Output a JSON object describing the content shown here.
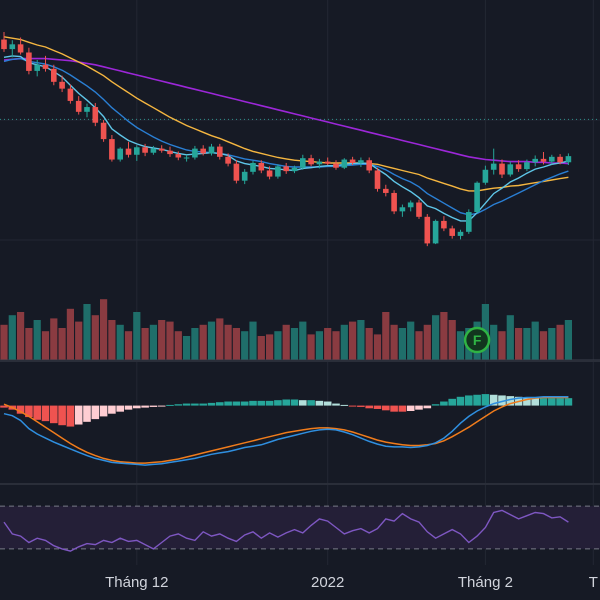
{
  "chart_data": {
    "type": "candlestick",
    "grid": true,
    "colors": {
      "background": "#161a25",
      "grid": "#232733",
      "up": "#26a69a",
      "down": "#ef5350",
      "volume_up": "#1f6e6a",
      "volume_down": "#8a3b41",
      "ma_fast": "#5fc6e8",
      "ma_mid": "#2a7fd4",
      "ma_slow": "#f5b640",
      "ma_long": "#9c27d8",
      "macd_line": "#2f8fe0",
      "signal_line": "#f07c1c",
      "hist_pos_strong": "#26a69a",
      "hist_pos_weak": "#b2dfdb",
      "hist_neg_strong": "#ef5350",
      "hist_neg_weak": "#ffcdd2",
      "rsi_line": "#7e57c2",
      "rsi_band": "#241f37",
      "badge": "#2fb344"
    },
    "price_candles": [
      {
        "o": 48.2,
        "h": 49.3,
        "l": 46.4,
        "c": 46.8
      },
      {
        "o": 46.8,
        "h": 48.1,
        "l": 45.6,
        "c": 47.5
      },
      {
        "o": 47.5,
        "h": 48.5,
        "l": 46.0,
        "c": 46.3
      },
      {
        "o": 46.3,
        "h": 47.0,
        "l": 43.1,
        "c": 43.6
      },
      {
        "o": 43.6,
        "h": 45.2,
        "l": 42.8,
        "c": 44.5
      },
      {
        "o": 44.5,
        "h": 45.8,
        "l": 43.5,
        "c": 43.9
      },
      {
        "o": 43.9,
        "h": 44.5,
        "l": 41.5,
        "c": 42.0
      },
      {
        "o": 42.0,
        "h": 42.9,
        "l": 40.5,
        "c": 41.0
      },
      {
        "o": 41.0,
        "h": 41.6,
        "l": 38.8,
        "c": 39.2
      },
      {
        "o": 39.2,
        "h": 39.9,
        "l": 37.2,
        "c": 37.6
      },
      {
        "o": 37.6,
        "h": 38.8,
        "l": 36.8,
        "c": 38.3
      },
      {
        "o": 38.3,
        "h": 38.9,
        "l": 35.5,
        "c": 36.0
      },
      {
        "o": 36.0,
        "h": 36.4,
        "l": 33.2,
        "c": 33.6
      },
      {
        "o": 33.6,
        "h": 34.2,
        "l": 30.3,
        "c": 30.6
      },
      {
        "o": 30.6,
        "h": 32.4,
        "l": 30.3,
        "c": 32.2
      },
      {
        "o": 32.2,
        "h": 33.2,
        "l": 30.9,
        "c": 31.3
      },
      {
        "o": 31.3,
        "h": 32.7,
        "l": 30.4,
        "c": 32.4
      },
      {
        "o": 32.4,
        "h": 32.9,
        "l": 31.1,
        "c": 31.6
      },
      {
        "o": 31.6,
        "h": 32.6,
        "l": 31.3,
        "c": 32.2
      },
      {
        "o": 32.2,
        "h": 32.7,
        "l": 31.6,
        "c": 31.9
      },
      {
        "o": 31.9,
        "h": 32.5,
        "l": 31.0,
        "c": 31.4
      },
      {
        "o": 31.4,
        "h": 31.8,
        "l": 30.5,
        "c": 30.9
      },
      {
        "o": 30.9,
        "h": 31.3,
        "l": 30.3,
        "c": 30.9
      },
      {
        "o": 30.9,
        "h": 32.6,
        "l": 30.6,
        "c": 32.2
      },
      {
        "o": 32.2,
        "h": 32.7,
        "l": 31.2,
        "c": 31.5
      },
      {
        "o": 31.5,
        "h": 32.9,
        "l": 31.2,
        "c": 32.5
      },
      {
        "o": 32.5,
        "h": 32.9,
        "l": 30.6,
        "c": 31.0
      },
      {
        "o": 31.0,
        "h": 31.5,
        "l": 29.6,
        "c": 30.0
      },
      {
        "o": 30.0,
        "h": 30.5,
        "l": 27.1,
        "c": 27.5
      },
      {
        "o": 27.5,
        "h": 29.2,
        "l": 27.0,
        "c": 28.8
      },
      {
        "o": 28.8,
        "h": 30.4,
        "l": 28.4,
        "c": 30.1
      },
      {
        "o": 30.1,
        "h": 30.5,
        "l": 28.6,
        "c": 29.0
      },
      {
        "o": 29.0,
        "h": 29.6,
        "l": 27.7,
        "c": 28.1
      },
      {
        "o": 28.1,
        "h": 29.9,
        "l": 27.8,
        "c": 29.6
      },
      {
        "o": 29.6,
        "h": 30.1,
        "l": 28.5,
        "c": 28.9
      },
      {
        "o": 28.9,
        "h": 29.7,
        "l": 28.6,
        "c": 29.4
      },
      {
        "o": 29.4,
        "h": 31.3,
        "l": 29.1,
        "c": 30.8
      },
      {
        "o": 30.8,
        "h": 31.3,
        "l": 29.6,
        "c": 29.9
      },
      {
        "o": 29.9,
        "h": 30.7,
        "l": 29.3,
        "c": 30.3
      },
      {
        "o": 30.3,
        "h": 30.9,
        "l": 29.8,
        "c": 30.0
      },
      {
        "o": 30.0,
        "h": 30.5,
        "l": 29.1,
        "c": 29.4
      },
      {
        "o": 29.4,
        "h": 30.8,
        "l": 29.2,
        "c": 30.6
      },
      {
        "o": 30.6,
        "h": 31.0,
        "l": 29.8,
        "c": 30.1
      },
      {
        "o": 30.1,
        "h": 30.9,
        "l": 29.5,
        "c": 30.5
      },
      {
        "o": 30.5,
        "h": 30.9,
        "l": 28.6,
        "c": 29.0
      },
      {
        "o": 29.0,
        "h": 29.4,
        "l": 25.9,
        "c": 26.3
      },
      {
        "o": 26.3,
        "h": 26.9,
        "l": 25.2,
        "c": 25.7
      },
      {
        "o": 25.7,
        "h": 26.1,
        "l": 22.6,
        "c": 23.0
      },
      {
        "o": 23.0,
        "h": 24.0,
        "l": 22.2,
        "c": 23.6
      },
      {
        "o": 23.6,
        "h": 24.6,
        "l": 23.0,
        "c": 24.3
      },
      {
        "o": 24.3,
        "h": 24.7,
        "l": 21.9,
        "c": 22.2
      },
      {
        "o": 22.2,
        "h": 22.6,
        "l": 17.9,
        "c": 18.3
      },
      {
        "o": 18.3,
        "h": 21.8,
        "l": 18.2,
        "c": 21.6
      },
      {
        "o": 21.6,
        "h": 22.3,
        "l": 20.1,
        "c": 20.5
      },
      {
        "o": 20.5,
        "h": 20.9,
        "l": 19.0,
        "c": 19.4
      },
      {
        "o": 19.4,
        "h": 20.3,
        "l": 18.9,
        "c": 20.0
      },
      {
        "o": 20.0,
        "h": 23.3,
        "l": 19.7,
        "c": 22.9
      },
      {
        "o": 22.9,
        "h": 27.4,
        "l": 22.7,
        "c": 27.2
      },
      {
        "o": 27.2,
        "h": 29.7,
        "l": 26.9,
        "c": 29.1
      },
      {
        "o": 29.1,
        "h": 32.2,
        "l": 28.4,
        "c": 30.0
      },
      {
        "o": 30.0,
        "h": 30.6,
        "l": 27.9,
        "c": 28.4
      },
      {
        "o": 28.4,
        "h": 30.3,
        "l": 28.1,
        "c": 29.9
      },
      {
        "o": 29.9,
        "h": 30.5,
        "l": 28.8,
        "c": 29.2
      },
      {
        "o": 29.2,
        "h": 30.6,
        "l": 28.9,
        "c": 30.2
      },
      {
        "o": 30.2,
        "h": 31.2,
        "l": 29.6,
        "c": 30.7
      },
      {
        "o": 30.7,
        "h": 31.7,
        "l": 29.9,
        "c": 30.3
      },
      {
        "o": 30.3,
        "h": 31.3,
        "l": 29.9,
        "c": 31.0
      },
      {
        "o": 31.0,
        "h": 31.4,
        "l": 29.9,
        "c": 30.2
      },
      {
        "o": 30.2,
        "h": 31.5,
        "l": 29.8,
        "c": 31.1
      }
    ],
    "ma_fast": [
      45.6,
      45.8,
      45.7,
      44.8,
      44.5,
      44.2,
      43.5,
      42.7,
      41.5,
      40.3,
      39.3,
      38.2,
      36.9,
      35.1,
      34.2,
      33.4,
      32.9,
      32.5,
      32.3,
      32.1,
      31.8,
      31.5,
      31.3,
      31.4,
      31.5,
      31.6,
      31.5,
      31.2,
      30.4,
      30.0,
      29.8,
      29.6,
      29.3,
      29.2,
      29.1,
      29.0,
      29.3,
      29.4,
      29.6,
      29.7,
      29.7,
      29.9,
      30.0,
      30.1,
      30.0,
      29.2,
      28.4,
      27.4,
      26.6,
      25.9,
      25.0,
      23.8,
      23.4,
      22.7,
      22.1,
      21.6,
      21.6,
      22.8,
      24.2,
      25.6,
      26.4,
      27.3,
      27.9,
      28.6,
      29.2,
      29.5,
      29.9,
      30.1,
      30.4
    ],
    "ma_mid": [
      45.0,
      45.3,
      45.4,
      45.0,
      44.8,
      44.6,
      44.2,
      43.7,
      43.0,
      42.2,
      41.4,
      40.5,
      39.4,
      38.2,
      37.2,
      36.2,
      35.3,
      34.6,
      33.9,
      33.3,
      32.8,
      32.4,
      32.0,
      31.8,
      31.7,
      31.6,
      31.5,
      31.3,
      31.0,
      30.7,
      30.5,
      30.3,
      30.0,
      29.8,
      29.6,
      29.5,
      29.5,
      29.5,
      29.5,
      29.6,
      29.6,
      29.7,
      29.8,
      29.9,
      29.9,
      29.6,
      29.1,
      28.4,
      27.8,
      27.3,
      26.6,
      25.6,
      24.9,
      24.2,
      23.5,
      22.8,
      22.5,
      22.7,
      23.3,
      24.0,
      24.5,
      25.1,
      25.7,
      26.3,
      26.9,
      27.5,
      28.0,
      28.5,
      28.9
    ],
    "ma_slow": [
      48.6,
      48.4,
      48.2,
      47.8,
      47.4,
      47.1,
      46.6,
      46.1,
      45.5,
      44.9,
      44.3,
      43.6,
      42.9,
      42.0,
      41.2,
      40.4,
      39.6,
      38.9,
      38.2,
      37.5,
      36.8,
      36.2,
      35.6,
      35.1,
      34.6,
      34.1,
      33.7,
      33.2,
      32.7,
      32.2,
      31.8,
      31.5,
      31.2,
      30.9,
      30.7,
      30.5,
      30.4,
      30.3,
      30.2,
      30.1,
      30.1,
      30.1,
      30.1,
      30.1,
      30.0,
      29.9,
      29.6,
      29.3,
      29.0,
      28.7,
      28.4,
      27.9,
      27.5,
      27.1,
      26.7,
      26.3,
      26.0,
      26.0,
      26.2,
      26.4,
      26.5,
      26.7,
      26.8,
      27.0,
      27.2,
      27.4,
      27.6,
      27.8,
      28.0
    ],
    "ma_long": [
      45.2,
      45.3,
      45.4,
      45.4,
      45.4,
      45.4,
      45.3,
      45.2,
      45.1,
      44.9,
      44.7,
      44.5,
      44.2,
      43.9,
      43.6,
      43.3,
      43.0,
      42.7,
      42.4,
      42.1,
      41.8,
      41.5,
      41.2,
      40.9,
      40.6,
      40.3,
      40.0,
      39.7,
      39.4,
      39.1,
      38.8,
      38.5,
      38.2,
      37.9,
      37.6,
      37.3,
      37.0,
      36.7,
      36.4,
      36.1,
      35.8,
      35.5,
      35.2,
      34.9,
      34.6,
      34.3,
      34.0,
      33.7,
      33.4,
      33.1,
      32.8,
      32.5,
      32.2,
      31.9,
      31.6,
      31.3,
      31.0,
      30.8,
      30.6,
      30.5,
      30.4,
      30.3,
      30.3,
      30.3,
      30.2,
      30.2,
      30.1,
      30.1,
      30.0
    ],
    "horizontal_level": 36.5,
    "price_range": [
      10,
      54
    ],
    "volume": [
      22,
      28,
      30,
      20,
      25,
      18,
      26,
      20,
      32,
      24,
      35,
      28,
      38,
      25,
      22,
      18,
      30,
      20,
      22,
      25,
      24,
      18,
      15,
      20,
      22,
      24,
      26,
      22,
      20,
      18,
      24,
      15,
      16,
      18,
      22,
      20,
      24,
      16,
      18,
      20,
      18,
      22,
      24,
      25,
      20,
      16,
      30,
      22,
      20,
      24,
      18,
      22,
      28,
      30,
      25,
      18,
      20,
      24,
      35,
      22,
      18,
      28,
      20,
      20,
      24,
      18,
      20,
      22,
      25
    ],
    "volume_max": 45,
    "macd": {
      "macd_line": [
        -1.2,
        -1.5,
        -2.2,
        -3.4,
        -4.2,
        -4.8,
        -5.4,
        -5.9,
        -6.4,
        -6.9,
        -7.4,
        -7.8,
        -8.1,
        -8.4,
        -8.5,
        -8.6,
        -8.7,
        -8.8,
        -8.7,
        -8.6,
        -8.4,
        -8.2,
        -8.0,
        -7.8,
        -7.5,
        -7.2,
        -7.0,
        -6.8,
        -6.5,
        -6.2,
        -6.0,
        -5.8,
        -5.4,
        -5.0,
        -4.7,
        -4.4,
        -4.1,
        -3.8,
        -3.6,
        -3.5,
        -3.6,
        -3.9,
        -4.3,
        -4.8,
        -5.3,
        -5.7,
        -6.0,
        -6.1,
        -6.1,
        -6.2,
        -6.1,
        -5.9,
        -5.5,
        -4.8,
        -3.8,
        -2.6,
        -1.6,
        -0.8,
        -0.2,
        0.3,
        0.6,
        0.9,
        1.1,
        1.2,
        1.2,
        1.3,
        1.3,
        1.3,
        1.3
      ],
      "signal_line": [
        0.2,
        -0.3,
        -0.9,
        -1.6,
        -2.4,
        -3.2,
        -4.0,
        -4.8,
        -5.6,
        -6.3,
        -6.9,
        -7.4,
        -7.8,
        -8.1,
        -8.3,
        -8.4,
        -8.5,
        -8.5,
        -8.4,
        -8.3,
        -8.1,
        -7.9,
        -7.6,
        -7.3,
        -7.0,
        -6.7,
        -6.4,
        -6.1,
        -5.8,
        -5.5,
        -5.2,
        -4.9,
        -4.6,
        -4.3,
        -4.0,
        -3.8,
        -3.6,
        -3.4,
        -3.3,
        -3.3,
        -3.4,
        -3.6,
        -3.9,
        -4.3,
        -4.7,
        -5.1,
        -5.4,
        -5.6,
        -5.8,
        -5.9,
        -5.9,
        -5.8,
        -5.6,
        -5.2,
        -4.6,
        -3.9,
        -3.2,
        -2.4,
        -1.6,
        -0.8,
        -0.2,
        0.3,
        0.6,
        0.9,
        1.1,
        1.2,
        1.2,
        1.2,
        1.2
      ],
      "histogram": [
        -0.3,
        -0.6,
        -1.2,
        -1.7,
        -2.1,
        -2.3,
        -2.6,
        -2.9,
        -3.1,
        -2.8,
        -2.4,
        -2.0,
        -1.6,
        -1.2,
        -0.9,
        -0.6,
        -0.4,
        -0.3,
        -0.2,
        -0.1,
        0.1,
        0.2,
        0.3,
        0.3,
        0.3,
        0.4,
        0.5,
        0.6,
        0.6,
        0.6,
        0.7,
        0.7,
        0.7,
        0.8,
        0.9,
        0.9,
        0.8,
        0.8,
        0.7,
        0.6,
        0.3,
        0.1,
        -0.1,
        -0.2,
        -0.4,
        -0.5,
        -0.7,
        -0.9,
        -0.9,
        -0.8,
        -0.6,
        -0.4,
        0.2,
        0.6,
        1.0,
        1.3,
        1.5,
        1.6,
        1.7,
        1.6,
        1.5,
        1.4,
        1.3,
        1.2,
        1.1,
        1.1,
        1.1,
        1.1,
        1.1
      ],
      "range": [
        -11,
        6
      ]
    },
    "rsi": {
      "values": [
        55,
        44,
        42,
        36,
        40,
        38,
        33,
        30,
        28,
        32,
        35,
        34,
        38,
        36,
        40,
        37,
        38,
        34,
        30,
        36,
        42,
        44,
        40,
        38,
        46,
        42,
        44,
        40,
        37,
        43,
        46,
        40,
        45,
        41,
        45,
        48,
        45,
        52,
        58,
        56,
        50,
        44,
        47,
        49,
        45,
        49,
        58,
        56,
        63,
        58,
        55,
        46,
        40,
        44,
        48,
        44,
        36,
        42,
        50,
        64,
        66,
        62,
        58,
        61,
        64,
        63,
        59,
        60,
        55
      ],
      "range": [
        15,
        85
      ],
      "upper": 70,
      "lower": 30
    },
    "x_tick_labels": [
      {
        "index": 16,
        "label": "Tháng 12"
      },
      {
        "index": 39,
        "label": "2022"
      },
      {
        "index": 58,
        "label": "Tháng 2"
      },
      {
        "index": 71,
        "label": "T"
      }
    ],
    "markers": [
      {
        "index": 57,
        "label": "F",
        "pane": "volume"
      }
    ]
  }
}
